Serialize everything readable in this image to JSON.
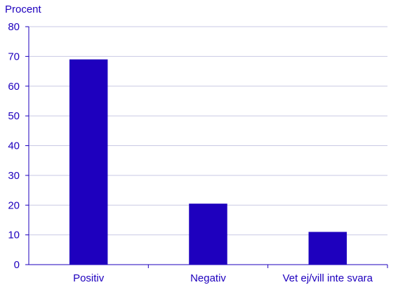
{
  "chart_data": {
    "type": "bar",
    "title": "",
    "xlabel": "",
    "ylabel": "Procent",
    "categories": [
      "Positiv",
      "Negativ",
      "Vet ej/vill inte svara"
    ],
    "values": [
      69,
      20.5,
      11
    ],
    "ylim": [
      0,
      80
    ],
    "yticks": [
      0,
      10,
      20,
      30,
      40,
      50,
      60,
      70,
      80
    ],
    "grid": true,
    "legend": "none",
    "colors": {
      "bar": "#1e00be",
      "text": "#1e00be",
      "grid": "#c9c9e4",
      "axis": "#1e00be"
    }
  }
}
